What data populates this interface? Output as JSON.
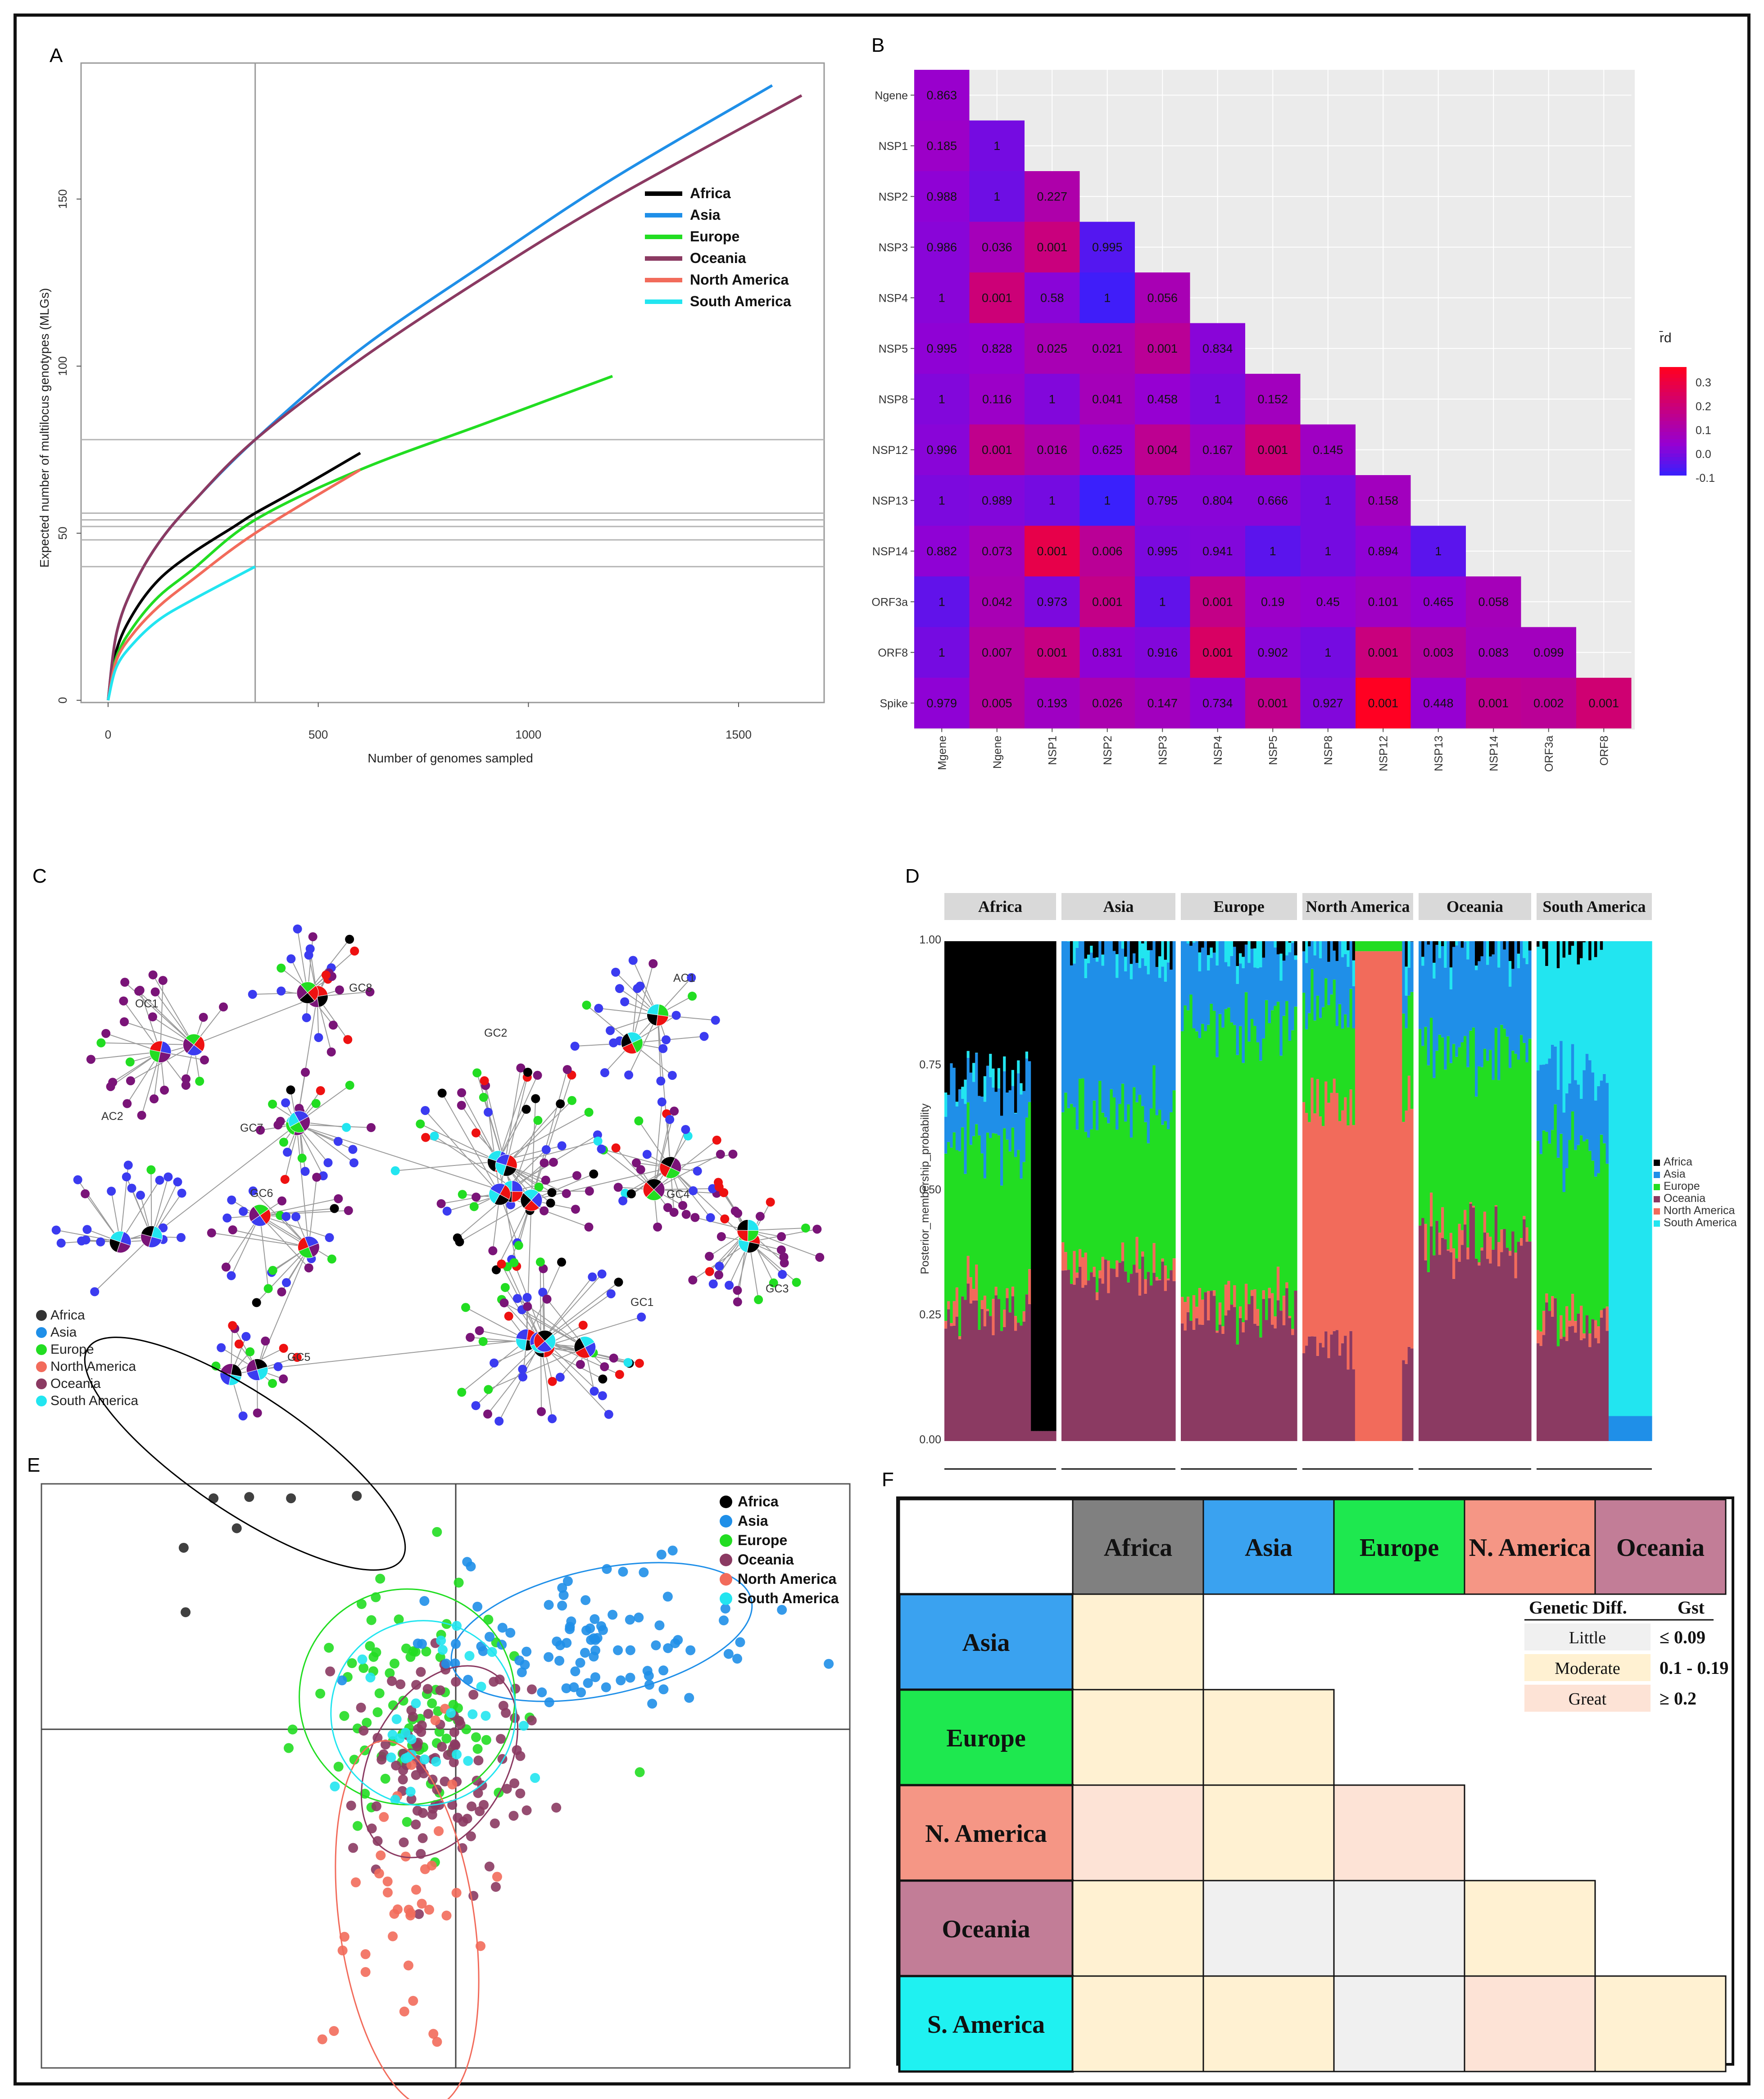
{
  "chart_data": [
    {
      "panel": "A",
      "type": "line",
      "xlabel": "Number of genomes sampled",
      "ylabel": "Expected number of multilocus genotypes (MLGs)",
      "xlim": [
        0,
        1650
      ],
      "ylim": [
        0,
        185
      ],
      "xticks": [
        0,
        500,
        1000,
        1500
      ],
      "yticks": [
        0,
        50,
        100,
        150
      ],
      "reference_x": 350,
      "reference_y": [
        78,
        56,
        54,
        52,
        48,
        40
      ],
      "series": [
        {
          "name": "Africa",
          "color": "#000000",
          "x": [
            0,
            20,
            60,
            120,
            200,
            300,
            350,
            450,
            600
          ],
          "y": [
            0,
            15,
            26,
            36,
            44,
            52,
            56,
            63,
            74
          ]
        },
        {
          "name": "Asia",
          "color": "#1f8fe8",
          "x": [
            0,
            20,
            60,
            120,
            200,
            350,
            600,
            900,
            1200,
            1580
          ],
          "y": [
            0,
            20,
            34,
            47,
            59,
            78,
            105,
            131,
            156,
            184
          ]
        },
        {
          "name": "Europe",
          "color": "#22dd22",
          "x": [
            0,
            20,
            60,
            120,
            200,
            350,
            600,
            900,
            1200
          ],
          "y": [
            0,
            13,
            22,
            31,
            39,
            54,
            69,
            83,
            97
          ]
        },
        {
          "name": "Oceania",
          "color": "#8b3a62",
          "x": [
            0,
            20,
            60,
            120,
            200,
            350,
            600,
            900,
            1200,
            1650
          ],
          "y": [
            0,
            20,
            34,
            47,
            59,
            78,
            102,
            127,
            150,
            181
          ]
        },
        {
          "name": "North America",
          "color": "#f26b5b",
          "x": [
            0,
            20,
            60,
            120,
            200,
            350,
            600
          ],
          "y": [
            0,
            12,
            20,
            28,
            36,
            50,
            69
          ]
        },
        {
          "name": "South America",
          "color": "#22e5f0",
          "x": [
            0,
            20,
            60,
            120,
            200,
            350
          ],
          "y": [
            0,
            10,
            17,
            24,
            30,
            40
          ]
        }
      ]
    },
    {
      "panel": "B",
      "type": "heatmap",
      "rows": [
        "Ngene",
        "NSP1",
        "NSP2",
        "NSP3",
        "NSP4",
        "NSP5",
        "NSP8",
        "NSP12",
        "NSP13",
        "NSP14",
        "ORF3a",
        "ORF8",
        "Spike"
      ],
      "cols": [
        "Mgene",
        "Ngene",
        "NSP1",
        "NSP2",
        "NSP3",
        "NSP4",
        "NSP5",
        "NSP8",
        "NSP12",
        "NSP13",
        "NSP14",
        "ORF3a",
        "ORF8"
      ],
      "pvalues": [
        [
          "0.863"
        ],
        [
          "0.185",
          "1"
        ],
        [
          "0.988",
          "1",
          "0.227"
        ],
        [
          "0.986",
          "0.036",
          "0.001",
          "0.995"
        ],
        [
          "1",
          "0.001",
          "0.58",
          "1",
          "0.056"
        ],
        [
          "0.995",
          "0.828",
          "0.025",
          "0.021",
          "0.001",
          "0.834"
        ],
        [
          "1",
          "0.116",
          "1",
          "0.041",
          "0.458",
          "1",
          "0.152"
        ],
        [
          "0.996",
          "0.001",
          "0.016",
          "0.625",
          "0.004",
          "0.167",
          "0.001",
          "0.145"
        ],
        [
          "1",
          "0.989",
          "1",
          "1",
          "0.795",
          "0.804",
          "0.666",
          "1",
          "0.158"
        ],
        [
          "0.882",
          "0.073",
          "0.001",
          "0.006",
          "0.995",
          "0.941",
          "1",
          "1",
          "0.894",
          "1"
        ],
        [
          "1",
          "0.042",
          "0.973",
          "0.001",
          "1",
          "0.001",
          "0.19",
          "0.45",
          "0.101",
          "0.465",
          "0.058"
        ],
        [
          "1",
          "0.007",
          "0.001",
          "0.831",
          "0.916",
          "0.001",
          "0.902",
          "1",
          "0.001",
          "0.003",
          "0.083",
          "0.099"
        ],
        [
          "0.979",
          "0.005",
          "0.193",
          "0.026",
          "0.147",
          "0.734",
          "0.001",
          "0.927",
          "0.001",
          "0.448",
          "0.001",
          "0.002",
          "0.001"
        ]
      ],
      "rd": [
        [
          0.01
        ],
        [
          0.02,
          -0.05
        ],
        [
          -0.01,
          -0.06,
          0.08
        ],
        [
          -0.02,
          0.05,
          0.17,
          -0.1
        ],
        [
          -0.02,
          0.18,
          -0.02,
          -0.13,
          0.06
        ],
        [
          -0.01,
          0.0,
          0.06,
          0.06,
          0.12,
          -0.02
        ],
        [
          -0.03,
          0.02,
          -0.03,
          0.05,
          0.0,
          -0.04,
          0.04
        ],
        [
          -0.02,
          0.14,
          0.08,
          0.0,
          0.13,
          0.03,
          0.18,
          0.03
        ],
        [
          -0.04,
          -0.03,
          -0.05,
          -0.14,
          -0.02,
          -0.02,
          -0.02,
          -0.05,
          0.04
        ],
        [
          -0.01,
          0.05,
          0.27,
          0.12,
          -0.04,
          -0.03,
          -0.09,
          -0.05,
          -0.01,
          -0.09
        ],
        [
          -0.08,
          0.06,
          -0.04,
          0.15,
          -0.08,
          0.15,
          0.02,
          0.0,
          0.03,
          0.0,
          0.05
        ],
        [
          -0.05,
          0.1,
          0.16,
          -0.01,
          -0.03,
          0.22,
          -0.02,
          -0.05,
          0.17,
          0.1,
          0.04,
          0.04
        ],
        [
          -0.01,
          0.1,
          0.03,
          0.07,
          0.04,
          -0.01,
          0.14,
          -0.03,
          0.36,
          0.0,
          0.13,
          0.12,
          0.19
        ]
      ],
      "legend_title": "r̄d",
      "legend_ticks": [
        "0.3",
        "0.2",
        "0.1",
        "0.0",
        "-0.1"
      ],
      "color_scale": [
        "#3322ff",
        "#9900cc",
        "#ff0022"
      ]
    },
    {
      "panel": "C",
      "type": "network",
      "cluster_labels": [
        "OC1",
        "GC8",
        "AC1",
        "GC2",
        "AC2",
        "GC7",
        "GC6",
        "GC4",
        "GC3",
        "GC1",
        "GC5"
      ]
    },
    {
      "panel": "D",
      "type": "bar",
      "ylabel": "Posterior_membership_probability",
      "yticks": [
        "0.00",
        "0.25",
        "0.50",
        "0.75",
        "1.00"
      ],
      "groups": [
        "Africa",
        "Asia",
        "Europe",
        "North America",
        "Oceania",
        "South America"
      ],
      "composition": [
        {
          "Oceania": 0.26,
          "North America": 0.02,
          "Europe": 0.32,
          "Asia": 0.12,
          "Africa": 0.28,
          "South America": 0.0
        },
        {
          "Oceania": 0.34,
          "North America": 0.02,
          "Europe": 0.32,
          "Asia": 0.32,
          "Africa": 0.0,
          "South America": 0.0
        },
        {
          "Oceania": 0.26,
          "North America": 0.03,
          "Europe": 0.57,
          "Asia": 0.14,
          "Africa": 0.0,
          "South America": 0.0
        },
        {
          "Oceania": 0.2,
          "North America": 0.5,
          "Europe": 0.2,
          "Asia": 0.1,
          "Africa": 0.0,
          "South America": 0.0
        },
        {
          "Oceania": 0.4,
          "North America": 0.02,
          "Europe": 0.38,
          "Asia": 0.2,
          "Africa": 0.0,
          "South America": 0.0
        },
        {
          "Oceania": 0.24,
          "North America": 0.02,
          "Europe": 0.34,
          "Asia": 0.14,
          "Africa": 0.0,
          "South America": 0.26
        }
      ]
    },
    {
      "panel": "E",
      "type": "scatter",
      "series": [
        {
          "name": "Africa",
          "center": [
            -1.3,
            1.7
          ],
          "spread": [
            0.35,
            0.35
          ]
        },
        {
          "name": "Asia",
          "center": [
            0.9,
            0.6
          ],
          "spread": [
            0.45,
            0.25
          ]
        },
        {
          "name": "Europe",
          "center": [
            -0.3,
            0.2
          ],
          "spread": [
            0.35,
            0.35
          ]
        },
        {
          "name": "Oceania",
          "center": [
            -0.1,
            -0.2
          ],
          "spread": [
            0.3,
            0.4
          ]
        },
        {
          "name": "North America",
          "center": [
            -0.3,
            -1.2
          ],
          "spread": [
            0.25,
            0.6
          ]
        },
        {
          "name": "South America",
          "center": [
            -0.2,
            0.1
          ],
          "spread": [
            0.3,
            0.3
          ]
        }
      ]
    },
    {
      "panel": "F",
      "type": "table",
      "col_headers": [
        "Africa",
        "Asia",
        "Europe",
        "N. America",
        "Oceania"
      ],
      "row_headers": [
        "Asia",
        "Europe",
        "N. America",
        "Oceania",
        "S. America"
      ],
      "categories": [
        [
          "Moderate"
        ],
        [
          "Moderate",
          "Moderate"
        ],
        [
          "Great",
          "Moderate",
          "Great"
        ],
        [
          "Moderate",
          "Little",
          "Little",
          "Moderate"
        ],
        [
          "Moderate",
          "Moderate",
          "Little",
          "Great",
          "Moderate"
        ]
      ]
    }
  ],
  "panels": {
    "a": "A",
    "b": "B",
    "c": "C",
    "d": "D",
    "e": "E",
    "f": "F"
  },
  "legend_regions": [
    "Africa",
    "Asia",
    "Europe",
    "Oceania",
    "North America",
    "South America"
  ],
  "legend_c": [
    "Africa",
    "Asia",
    "Europe",
    "North America",
    "Oceania",
    "South America"
  ],
  "legend_d": [
    "Africa",
    "Asia",
    "Europe",
    "Oceania",
    "North America",
    "South America"
  ],
  "fst_legend": {
    "title_left": "Genetic Diff.",
    "title_right": "Gst",
    "rows": [
      {
        "label": "Little",
        "value": "≤ 0.09",
        "color": "#f0f0f0"
      },
      {
        "label": "Moderate",
        "value": "0.1 - 0.19",
        "color": "#fff1d2"
      },
      {
        "label": "Great",
        "value": "≥ 0.2",
        "color": "#fde3d6"
      }
    ]
  },
  "colors": {
    "Africa": "#000000",
    "Asia": "#1f8fe8",
    "Europe": "#22dd22",
    "Oceania": "#8b3a62",
    "North America": "#f26b5b",
    "South America": "#22e5f0",
    "net_asia": "#3b3bf0",
    "net_oceania": "#7a1478",
    "net_na": "#ee1111"
  },
  "table_colors": {
    "Africa": "#808080",
    "Asia": "#3aa2f0",
    "Europe": "#1ee84f",
    "N. America": "#f59685",
    "Oceania": "#c27d97",
    "S. America": "#1ff1f1"
  }
}
